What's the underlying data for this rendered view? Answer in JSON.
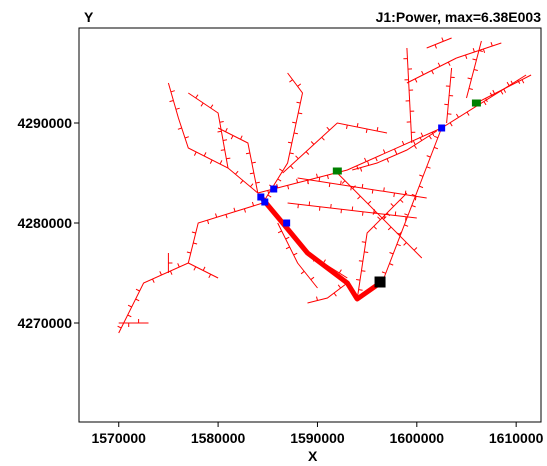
{
  "chart_data": {
    "type": "network-map",
    "title": "J1:Power, max=6.38E003",
    "xlabel": "X",
    "ylabel": "Y",
    "xlim": [
      1566000,
      1612500
    ],
    "ylim": [
      4260100,
      4299500
    ],
    "xticks": [
      {
        "value": 1570000,
        "label": "1570000"
      },
      {
        "value": 1580000,
        "label": "1580000"
      },
      {
        "value": 1590000,
        "label": "1590000"
      },
      {
        "value": 1600000,
        "label": "1600000"
      },
      {
        "value": 1610000,
        "label": "1610000"
      }
    ],
    "yticks": [
      {
        "value": 4270000,
        "label": "4270000"
      },
      {
        "value": 4280000,
        "label": "4280000"
      },
      {
        "value": 4290000,
        "label": "4290000"
      }
    ],
    "colors": {
      "thin_network": "#ff0000",
      "main_path": "#ff0000",
      "node_blue": "#0000ff",
      "node_green": "#008000",
      "source": "#000000"
    },
    "main_path": [
      [
        1596300,
        4274000
      ],
      [
        1594000,
        4272400
      ],
      [
        1593000,
        4274000
      ],
      [
        1589000,
        4277000
      ],
      [
        1586500,
        4280000
      ],
      [
        1584400,
        4282500
      ]
    ],
    "thin_lines": [
      [
        [
          1584000,
          4283000
        ],
        [
          1593000,
          4285300
        ],
        [
          1602500,
          4289500
        ],
        [
          1611000,
          4294800
        ]
      ],
      [
        [
          1593500,
          4285300
        ],
        [
          1596000,
          4286000
        ],
        [
          1599000,
          4287300
        ],
        [
          1602000,
          4289200
        ]
      ],
      [
        [
          1606000,
          4292000
        ],
        [
          1611500,
          4294800
        ]
      ],
      [
        [
          1602500,
          4289500
        ],
        [
          1596500,
          4274000
        ]
      ],
      [
        [
          1584500,
          4282000
        ],
        [
          1578000,
          4280000
        ],
        [
          1577000,
          4276000
        ],
        [
          1572500,
          4274000
        ],
        [
          1570500,
          4270000
        ],
        [
          1570000,
          4269000
        ]
      ],
      [
        [
          1570000,
          4270000
        ],
        [
          1573000,
          4270000
        ]
      ],
      [
        [
          1577000,
          4276000
        ],
        [
          1580000,
          4274500
        ]
      ],
      [
        [
          1575000,
          4275000
        ],
        [
          1575000,
          4277000
        ]
      ],
      [
        [
          1584000,
          4283000
        ],
        [
          1581000,
          4285500
        ],
        [
          1577000,
          4287500
        ],
        [
          1576000,
          4290500
        ]
      ],
      [
        [
          1576000,
          4290500
        ],
        [
          1575000,
          4294000
        ]
      ],
      [
        [
          1581000,
          4285500
        ],
        [
          1580000,
          4291000
        ],
        [
          1577000,
          4293000
        ]
      ],
      [
        [
          1584500,
          4282000
        ],
        [
          1587000,
          4286000
        ],
        [
          1588500,
          4293000
        ],
        [
          1587000,
          4295000
        ]
      ],
      [
        [
          1584000,
          4283000
        ],
        [
          1583000,
          4288000
        ],
        [
          1580000,
          4289500
        ]
      ],
      [
        [
          1586500,
          4285000
        ],
        [
          1592000,
          4290000
        ],
        [
          1597000,
          4289000
        ]
      ],
      [
        [
          1586000,
          4280000
        ],
        [
          1588000,
          4276000
        ],
        [
          1590000,
          4273500
        ]
      ],
      [
        [
          1589000,
          4277000
        ],
        [
          1593000,
          4274500
        ]
      ],
      [
        [
          1594000,
          4272400
        ],
        [
          1595000,
          4279000
        ],
        [
          1599000,
          4283000
        ]
      ],
      [
        [
          1593000,
          4274000
        ],
        [
          1591000,
          4272500
        ],
        [
          1589000,
          4272000
        ]
      ],
      [
        [
          1587000,
          4282000
        ],
        [
          1600000,
          4280500
        ]
      ],
      [
        [
          1588000,
          4284500
        ],
        [
          1601000,
          4282500
        ]
      ],
      [
        [
          1592000,
          4285000
        ],
        [
          1600500,
          4276500
        ]
      ],
      [
        [
          1599500,
          4288000
        ],
        [
          1599000,
          4297500
        ]
      ],
      [
        [
          1599000,
          4294000
        ],
        [
          1604000,
          4296500
        ]
      ],
      [
        [
          1603000,
          4290000
        ],
        [
          1603500,
          4295500
        ]
      ],
      [
        [
          1604000,
          4296500
        ],
        [
          1608500,
          4298000
        ]
      ],
      [
        [
          1605000,
          4292500
        ],
        [
          1606500,
          4298200
        ]
      ],
      [
        [
          1601000,
          4297500
        ],
        [
          1603500,
          4298500
        ]
      ]
    ],
    "nodes_blue": [
      [
        1584300,
        4282600
      ],
      [
        1584700,
        4282100
      ],
      [
        1585600,
        4283400
      ],
      [
        1586900,
        4280000
      ],
      [
        1602500,
        4289500
      ]
    ],
    "nodes_green": [
      [
        1592000,
        4285200
      ],
      [
        1606000,
        4292000
      ]
    ],
    "source_node": [
      1596300,
      4274100
    ]
  }
}
